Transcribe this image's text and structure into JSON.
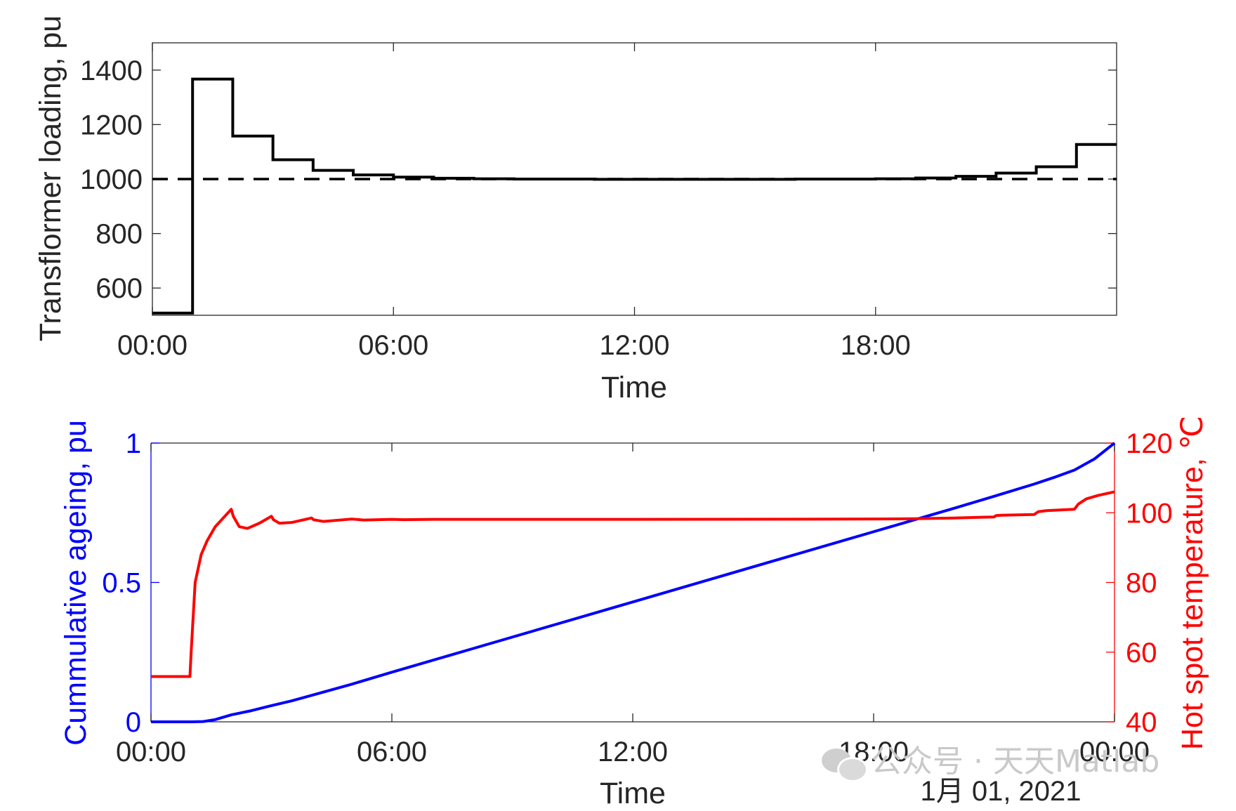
{
  "chart_data": [
    {
      "type": "line",
      "ylabel": "Transflormer loading, pu",
      "xlabel": "Time",
      "xlim": [
        "00:00",
        "24:00"
      ],
      "ylim": [
        500,
        1500
      ],
      "xticks": [
        "00:00",
        "06:00",
        "12:00",
        "18:00"
      ],
      "yticks": [
        "600",
        "800",
        "1000",
        "1200",
        "1400"
      ],
      "grid": false,
      "series": [
        {
          "style": "solid-step",
          "color": "#000000",
          "hours": [
            0,
            1,
            2,
            3,
            4,
            5,
            6,
            7,
            8,
            9,
            10,
            11,
            12,
            13,
            14,
            15,
            16,
            17,
            18,
            19,
            20,
            21,
            22,
            23,
            24
          ],
          "values": [
            508,
            1367,
            1158,
            1071,
            1032,
            1015,
            1007,
            1003,
            1001,
            1000,
            1000,
            999,
            999,
            999,
            999,
            999,
            1000,
            1000,
            1001,
            1004,
            1010,
            1022,
            1045,
            1127,
            1127
          ]
        },
        {
          "style": "dashed",
          "color": "#000000",
          "hours": [
            0,
            24
          ],
          "values": [
            1000,
            1000
          ]
        }
      ]
    },
    {
      "type": "line",
      "xlabel": "Time",
      "ylabel_left": "Cummulative ageing, pu",
      "ylabel_right": "Hot spot temperature, ℃",
      "xlim": [
        "00:00",
        "00:00"
      ],
      "xticks": [
        "00:00",
        "06:00",
        "12:00",
        "18:00",
        "00:00"
      ],
      "x_secondary_label": "1月 01, 2021",
      "ylim_left": [
        0,
        1
      ],
      "yticks_left": [
        "0",
        "0.5",
        "1"
      ],
      "ylim_right": [
        40,
        120
      ],
      "yticks_right": [
        "40",
        "60",
        "80",
        "100",
        "120"
      ],
      "grid": false,
      "left_color": "#0000ff",
      "right_color": "#ff0000",
      "series": [
        {
          "axis": "left",
          "color": "#0000ff",
          "hours": [
            0,
            1,
            1.3,
            1.6,
            2,
            2.5,
            3,
            3.5,
            4,
            5,
            6,
            8,
            10,
            12,
            14,
            16,
            18,
            19,
            20,
            21,
            22,
            22.5,
            23,
            23.5,
            24
          ],
          "values": [
            0,
            0,
            0.001,
            0.008,
            0.025,
            0.04,
            0.058,
            0.075,
            0.095,
            0.135,
            0.178,
            0.262,
            0.346,
            0.43,
            0.514,
            0.598,
            0.682,
            0.724,
            0.766,
            0.809,
            0.853,
            0.877,
            0.903,
            0.943,
            1.0
          ]
        },
        {
          "axis": "right",
          "color": "#ff0000",
          "hours": [
            0,
            0.97,
            1.0,
            1.1,
            1.25,
            1.4,
            1.6,
            1.8,
            2.0,
            2.05,
            2.2,
            2.4,
            2.7,
            3.0,
            3.05,
            3.2,
            3.5,
            4.0,
            4.05,
            4.3,
            5.0,
            5.3,
            6.0,
            6.3,
            7.0,
            8.0,
            9.0,
            12.0,
            18.0,
            19.0,
            20.0,
            21.0,
            21.05,
            21.2,
            22.0,
            22.1,
            22.3,
            23.0,
            23.1,
            23.3,
            23.6,
            24.0
          ],
          "values": [
            53,
            53,
            60,
            80,
            88,
            92,
            96,
            98.5,
            101,
            99,
            96,
            95.5,
            97,
            99,
            98,
            97,
            97.2,
            98.5,
            98,
            97.5,
            98.2,
            97.9,
            98.1,
            98.0,
            98.1,
            98.1,
            98.1,
            98.1,
            98.2,
            98.3,
            98.5,
            98.8,
            99.2,
            99.3,
            99.5,
            100.3,
            100.6,
            101,
            102.5,
            104,
            105,
            106
          ]
        }
      ]
    }
  ],
  "watermark": {
    "text": "公众号 · 天天Matlab"
  }
}
